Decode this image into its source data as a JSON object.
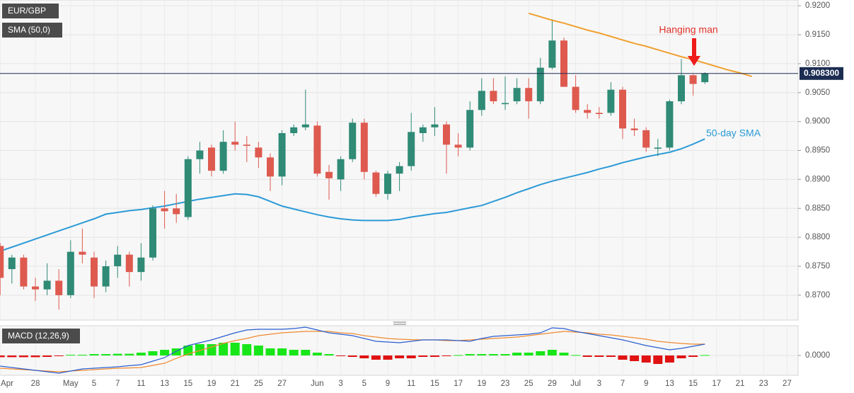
{
  "chart_data": {
    "type": "candlestick",
    "title": "EUR/GBP",
    "up_color": "#2f8a76",
    "down_color": "#de5a4f",
    "categories": [
      "Apr",
      null,
      null,
      "28",
      null,
      null,
      "May",
      null,
      "5",
      null,
      "7",
      null,
      "11",
      null,
      "13",
      null,
      "15",
      null,
      "19",
      null,
      "21",
      null,
      "25",
      null,
      "27",
      null,
      null,
      "Jun",
      null,
      "3",
      null,
      "5",
      null,
      "9",
      null,
      "11",
      null,
      "15",
      null,
      "17",
      null,
      "19",
      null,
      "23",
      null,
      "25",
      null,
      "29",
      null,
      "Jul",
      null,
      "3",
      null,
      "7",
      null,
      "9",
      null,
      "13",
      null,
      "15",
      null,
      "17",
      null,
      "21",
      null,
      "23",
      null,
      "27"
    ],
    "open": [
      0.8785,
      0.8745,
      0.8765,
      0.8715,
      0.871,
      0.8725,
      0.87,
      0.8775,
      0.8765,
      0.8715,
      0.875,
      0.877,
      0.874,
      0.8765,
      0.885,
      0.885,
      0.8835,
      0.8935,
      0.8955,
      0.8915,
      0.8965,
      0.896,
      0.8955,
      0.8938,
      0.8905,
      0.898,
      0.899,
      0.8993,
      0.8913,
      0.89,
      0.8935,
      0.8998,
      0.8912,
      0.8875,
      0.891,
      0.8923,
      0.898,
      0.899,
      0.8995,
      0.896,
      0.8955,
      0.902,
      0.9053,
      0.903,
      0.9035,
      0.9058,
      0.9035,
      0.9093,
      0.914,
      0.906,
      0.902,
      0.9015,
      0.9015,
      0.9055,
      0.8988,
      0.8985,
      0.8953,
      0.8955,
      0.9035,
      0.908,
      0.9068,
      null,
      null,
      null,
      null,
      null,
      null,
      null
    ],
    "high": [
      0.879,
      0.877,
      0.877,
      0.873,
      0.8755,
      0.8745,
      0.8795,
      0.8815,
      0.8775,
      0.876,
      0.8785,
      0.8775,
      0.879,
      0.8855,
      0.888,
      0.8875,
      0.894,
      0.8965,
      0.896,
      0.8985,
      0.9,
      0.8975,
      0.8965,
      0.8945,
      0.8985,
      0.8995,
      0.9055,
      0.9,
      0.8925,
      0.894,
      0.9005,
      0.9005,
      0.8915,
      0.8915,
      0.893,
      0.9015,
      0.8995,
      0.9025,
      0.9,
      0.898,
      0.9035,
      0.9075,
      0.9075,
      0.9078,
      0.9075,
      0.9075,
      0.911,
      0.9177,
      0.9145,
      0.908,
      0.903,
      0.9025,
      0.9068,
      0.906,
      0.9005,
      0.899,
      0.897,
      0.9038,
      0.9108,
      0.9082,
      0.9085,
      null,
      null,
      null,
      null,
      null,
      null,
      null
    ],
    "low": [
      0.87,
      0.872,
      0.871,
      0.869,
      0.87,
      0.8675,
      0.8695,
      0.8755,
      0.8695,
      0.8705,
      0.873,
      0.8715,
      0.8725,
      0.876,
      0.8815,
      0.8825,
      0.883,
      0.891,
      0.8905,
      0.891,
      0.895,
      0.893,
      0.892,
      0.888,
      0.889,
      0.8975,
      0.8985,
      0.8905,
      0.8865,
      0.888,
      0.893,
      0.89,
      0.887,
      0.8865,
      0.888,
      0.8915,
      0.8965,
      0.8975,
      0.891,
      0.894,
      0.895,
      0.901,
      0.903,
      0.902,
      0.903,
      0.9005,
      0.903,
      0.909,
      0.906,
      0.9015,
      0.9005,
      0.9005,
      0.901,
      0.897,
      0.8975,
      0.8948,
      0.894,
      0.895,
      0.903,
      0.9045,
      0.9065,
      null,
      null,
      null,
      null,
      null,
      null,
      null
    ],
    "close": [
      0.873,
      0.8765,
      0.8715,
      0.871,
      0.8725,
      0.87,
      0.8775,
      0.877,
      0.8715,
      0.875,
      0.877,
      0.874,
      0.8765,
      0.885,
      0.8845,
      0.884,
      0.8935,
      0.895,
      0.8915,
      0.8965,
      0.896,
      0.8958,
      0.8938,
      0.8905,
      0.898,
      0.899,
      0.8995,
      0.891,
      0.8902,
      0.8935,
      0.8998,
      0.8913,
      0.8875,
      0.891,
      0.8923,
      0.8982,
      0.899,
      0.8995,
      0.896,
      0.8955,
      0.902,
      0.9053,
      0.9035,
      0.9032,
      0.9058,
      0.9035,
      0.9093,
      0.914,
      0.906,
      0.902,
      0.9015,
      0.9013,
      0.9055,
      0.8988,
      0.8985,
      0.8955,
      0.8955,
      0.9035,
      0.908,
      0.9065,
      0.9083,
      null,
      null,
      null,
      null,
      null,
      null,
      null
    ],
    "ylim": [
      0.8657,
      0.921
    ],
    "yticks": [
      {
        "value": 0.92,
        "label": "0.9200"
      },
      {
        "value": 0.915,
        "label": "0.9150"
      },
      {
        "value": 0.91,
        "label": "0.9100"
      },
      {
        "value": 0.905,
        "label": "0.9050"
      },
      {
        "value": 0.9,
        "label": "0.9000"
      },
      {
        "value": 0.895,
        "label": "0.8950"
      },
      {
        "value": 0.89,
        "label": "0.8900"
      },
      {
        "value": 0.885,
        "label": "0.8850"
      },
      {
        "value": 0.88,
        "label": "0.8800"
      },
      {
        "value": 0.875,
        "label": "0.8750"
      },
      {
        "value": 0.87,
        "label": "0.8700"
      }
    ],
    "grid": true,
    "last_price": {
      "value": 0.9083,
      "label": "0.908300",
      "color": "#1c2d52"
    },
    "sma": {
      "name": "SMA (50,0)",
      "annotation": "50-day SMA",
      "color": "#2b9ad6",
      "values": [
        0.8776,
        0.8783,
        0.879,
        0.8797,
        0.8804,
        0.8811,
        0.8818,
        0.8825,
        0.8832,
        0.884,
        0.8843,
        0.8846,
        0.8848,
        0.8851,
        0.8854,
        0.8858,
        0.8862,
        0.8866,
        0.8869,
        0.8872,
        0.8875,
        0.8874,
        0.887,
        0.8862,
        0.8854,
        0.8849,
        0.8844,
        0.8839,
        0.8835,
        0.8832,
        0.883,
        0.8829,
        0.8829,
        0.8829,
        0.8831,
        0.8835,
        0.8838,
        0.8841,
        0.8843,
        0.8847,
        0.8851,
        0.8855,
        0.8862,
        0.8869,
        0.8877,
        0.8884,
        0.8891,
        0.8897,
        0.8902,
        0.8907,
        0.8912,
        0.8918,
        0.8923,
        0.8929,
        0.8934,
        0.8939,
        0.8943,
        0.8947,
        0.8953,
        0.8961,
        0.897,
        null,
        null,
        null,
        null,
        null,
        null,
        null
      ]
    },
    "trendline": {
      "color": "#f0a030",
      "values": [
        null,
        null,
        null,
        null,
        null,
        null,
        null,
        null,
        null,
        null,
        null,
        null,
        null,
        null,
        null,
        null,
        null,
        null,
        null,
        null,
        null,
        null,
        null,
        null,
        null,
        null,
        null,
        null,
        null,
        null,
        null,
        null,
        null,
        null,
        null,
        null,
        null,
        null,
        null,
        null,
        null,
        null,
        null,
        null,
        null,
        0.9187,
        0.9181,
        0.9175,
        0.917,
        0.9164,
        0.9158,
        0.9153,
        0.9147,
        0.9141,
        0.9135,
        0.913,
        0.9124,
        0.9118,
        0.9112,
        0.9107,
        0.9101,
        0.9095,
        0.9089,
        0.9084,
        0.9078,
        null,
        null,
        null
      ]
    },
    "annotation": "Hanging man",
    "macd": {
      "name": "MACD (12,26,9)",
      "ylim": [
        -0.0014,
        0.0021
      ],
      "yticks": [
        {
          "value": 0,
          "label": "0.0000"
        }
      ],
      "up_color": "#19e619",
      "down_color": "#e01212",
      "macd_color": "#2a5fd0",
      "signal_color": "#f08a30",
      "histogram": [
        -0.00012,
        -0.00012,
        -0.00012,
        -0.00012,
        -0.0001,
        -5e-05,
        5e-05,
        5e-05,
        0.0001,
        0.0001,
        0.00012,
        0.00012,
        0.0002,
        0.0003,
        0.0004,
        0.0005,
        0.0007,
        0.0008,
        0.0008,
        0.0009,
        0.0009,
        0.0008,
        0.0007,
        0.0005,
        0.0005,
        0.0004,
        0.0004,
        0.0002,
        0.0001,
        -3e-05,
        -0.0001,
        -0.0002,
        -0.0003,
        -0.0003,
        -0.0002,
        -0.0002,
        -0.0001,
        -0.0001,
        -5e-05,
        3e-05,
        0.0001,
        0.0001,
        0.0001,
        0.0001,
        0.0002,
        0.0002,
        0.0003,
        0.0004,
        0.0002,
        3e-05,
        -0.0001,
        -0.0001,
        -0.0001,
        -0.0003,
        -0.0004,
        -0.0005,
        -0.0006,
        -0.0005,
        -0.0002,
        -0.0001,
        3e-05,
        null,
        null,
        null,
        null,
        null,
        null,
        null
      ],
      "macd": [
        -0.00075,
        -0.00085,
        -0.00095,
        -0.00105,
        -0.00115,
        -0.00125,
        -0.0011,
        -0.00095,
        -0.0009,
        -0.00085,
        -0.0008,
        -0.00072,
        -0.00065,
        -0.0004,
        -0.00015,
        0.0003,
        0.0007,
        0.0009,
        0.0011,
        0.00135,
        0.0016,
        0.0018,
        0.00185,
        0.00185,
        0.00185,
        0.0019,
        0.002,
        0.0018,
        0.0016,
        0.0015,
        0.0014,
        0.0012,
        0.001,
        0.00095,
        0.0009,
        0.001,
        0.0011,
        0.0011,
        0.0011,
        0.00105,
        0.001,
        0.0012,
        0.00135,
        0.0014,
        0.00145,
        0.0015,
        0.0016,
        0.00195,
        0.0019,
        0.0017,
        0.00155,
        0.0014,
        0.00125,
        0.0011,
        0.0009,
        0.0007,
        0.00055,
        0.0004,
        0.0005,
        0.00065,
        0.0008,
        null,
        null,
        null,
        null,
        null,
        null,
        null
      ],
      "signal": [
        -0.0009,
        -0.00095,
        -0.001,
        -0.00105,
        -0.0011,
        -0.00115,
        -0.0011,
        -0.00105,
        -0.001,
        -0.00095,
        -0.0009,
        -0.00088,
        -0.00085,
        -0.0007,
        -0.00055,
        -0.0002,
        0.0001,
        0.00035,
        0.0006,
        0.00085,
        0.00105,
        0.0012,
        0.0014,
        0.0015,
        0.0016,
        0.00165,
        0.0017,
        0.0017,
        0.0017,
        0.0016,
        0.00155,
        0.0014,
        0.0013,
        0.0012,
        0.00115,
        0.00112,
        0.0011,
        0.0011,
        0.00105,
        0.00105,
        0.0011,
        0.00115,
        0.0012,
        0.00125,
        0.0013,
        0.0014,
        0.0015,
        0.0016,
        0.0017,
        0.00165,
        0.0016,
        0.0015,
        0.00145,
        0.00135,
        0.00125,
        0.00115,
        0.001,
        0.00092,
        0.00085,
        0.0008,
        0.0008,
        null,
        null,
        null,
        null,
        null,
        null,
        null
      ]
    }
  }
}
